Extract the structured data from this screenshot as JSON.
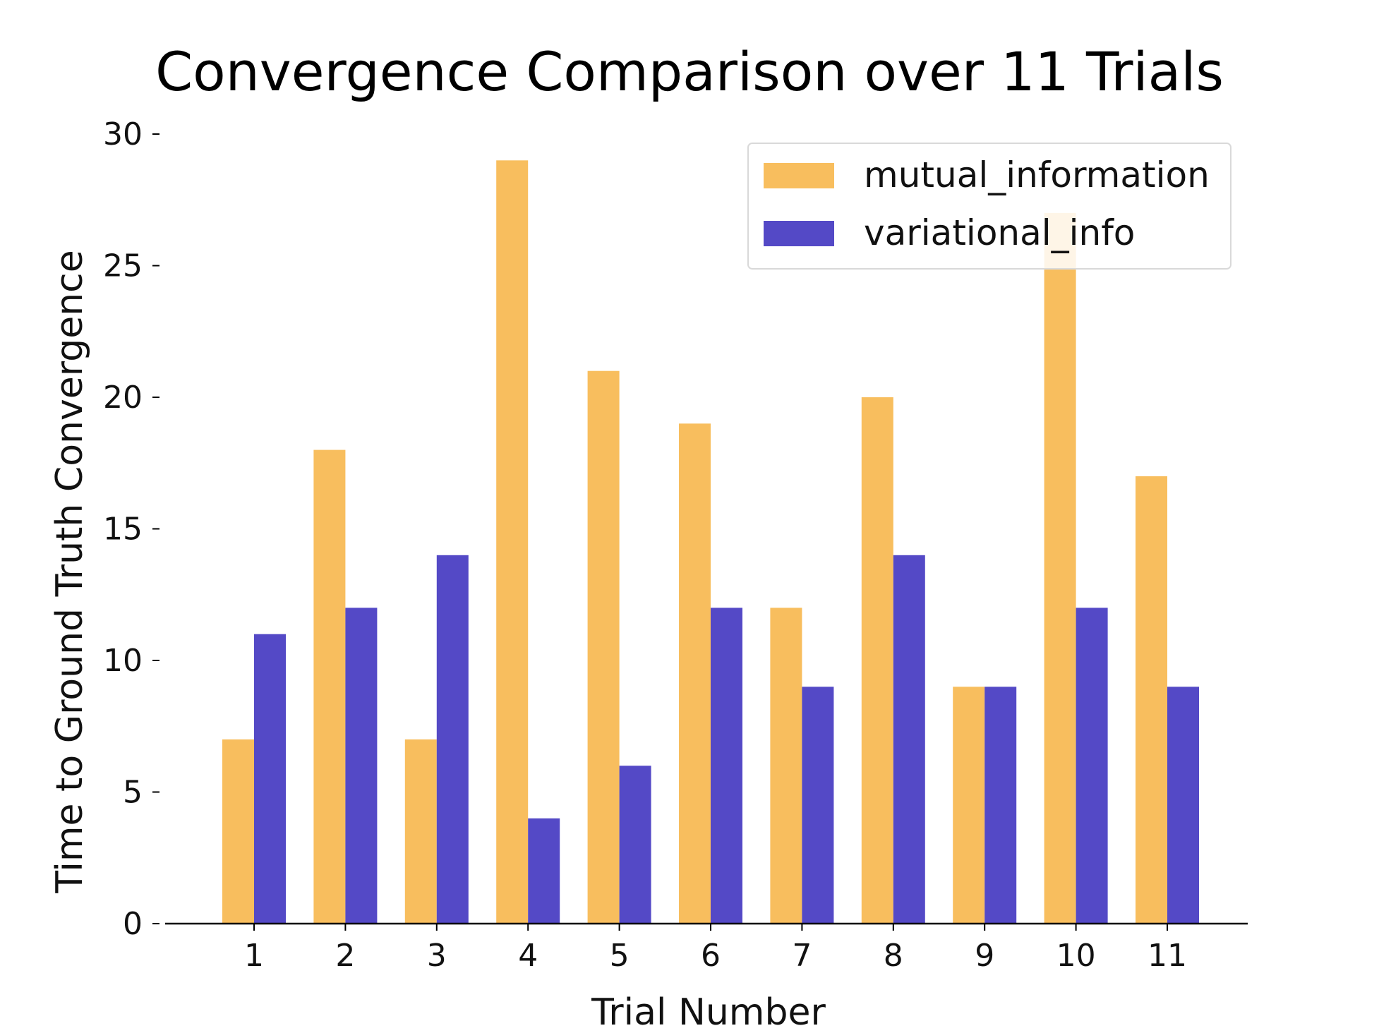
{
  "chart_data": {
    "type": "bar",
    "title": "Convergence  Comparison over 11 Trials",
    "xlabel": "Trial Number",
    "ylabel": "Time to Ground Truth Convergence",
    "categories": [
      "1",
      "2",
      "3",
      "4",
      "5",
      "6",
      "7",
      "8",
      "9",
      "10",
      "11"
    ],
    "series": [
      {
        "name": "mutual_information",
        "color": "#F8BE5E",
        "values": [
          7,
          18,
          7,
          29,
          21,
          19,
          12,
          20,
          9,
          27,
          17
        ]
      },
      {
        "name": "variational_info",
        "color": "#5449C6",
        "values": [
          11,
          12,
          14,
          4,
          6,
          12,
          9,
          14,
          9,
          12,
          9
        ]
      }
    ],
    "ylim": [
      0,
      30
    ],
    "yticks": [
      0,
      5,
      10,
      15,
      20,
      25,
      30
    ],
    "grid": false,
    "legend_position": "top-right"
  }
}
